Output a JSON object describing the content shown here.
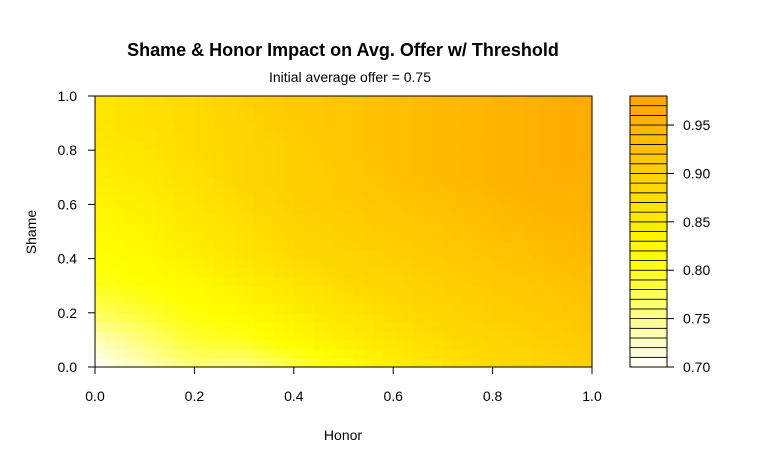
{
  "chart_data": {
    "type": "heatmap",
    "title": "Shame & Honor Impact on Avg. Offer w/ Threshold",
    "subtitle": "Initial average offer = 0.75",
    "xlabel": "Honor",
    "ylabel": "Shame",
    "xlim": [
      0,
      1
    ],
    "ylim": [
      0,
      1
    ],
    "x_ticks": [
      "0.0",
      "0.2",
      "0.4",
      "0.6",
      "0.8",
      "1.0"
    ],
    "y_ticks": [
      "0.0",
      "0.2",
      "0.4",
      "0.6",
      "0.8",
      "1.0"
    ],
    "x": [
      0.0,
      0.1,
      0.2,
      0.3,
      0.4,
      0.5,
      0.6,
      0.7,
      0.8,
      0.9,
      1.0
    ],
    "y": [
      0.0,
      0.1,
      0.2,
      0.3,
      0.4,
      0.5,
      0.6,
      0.7,
      0.8,
      0.9,
      1.0
    ],
    "z": [
      [
        0.7,
        0.73,
        0.76,
        0.75,
        0.78,
        0.81,
        0.84,
        0.86,
        0.88,
        0.89,
        0.9
      ],
      [
        0.73,
        0.76,
        0.79,
        0.8,
        0.82,
        0.84,
        0.86,
        0.88,
        0.89,
        0.9,
        0.91
      ],
      [
        0.77,
        0.79,
        0.81,
        0.82,
        0.84,
        0.86,
        0.88,
        0.89,
        0.9,
        0.91,
        0.92
      ],
      [
        0.8,
        0.81,
        0.82,
        0.84,
        0.86,
        0.88,
        0.89,
        0.9,
        0.91,
        0.92,
        0.93
      ],
      [
        0.81,
        0.82,
        0.84,
        0.86,
        0.88,
        0.89,
        0.9,
        0.91,
        0.92,
        0.93,
        0.94
      ],
      [
        0.82,
        0.83,
        0.85,
        0.87,
        0.89,
        0.9,
        0.91,
        0.92,
        0.93,
        0.94,
        0.95
      ],
      [
        0.83,
        0.84,
        0.86,
        0.88,
        0.9,
        0.91,
        0.92,
        0.93,
        0.94,
        0.95,
        0.96
      ],
      [
        0.84,
        0.85,
        0.87,
        0.89,
        0.9,
        0.91,
        0.93,
        0.94,
        0.95,
        0.96,
        0.96
      ],
      [
        0.85,
        0.86,
        0.88,
        0.89,
        0.9,
        0.92,
        0.93,
        0.94,
        0.95,
        0.96,
        0.97
      ],
      [
        0.86,
        0.87,
        0.88,
        0.89,
        0.91,
        0.92,
        0.93,
        0.94,
        0.95,
        0.96,
        0.97
      ],
      [
        0.86,
        0.87,
        0.88,
        0.9,
        0.91,
        0.92,
        0.93,
        0.94,
        0.95,
        0.96,
        0.97
      ]
    ],
    "colorbar": {
      "min": 0.7,
      "max": 0.98,
      "step": 0.01,
      "ticks": [
        "0.70",
        "0.75",
        "0.80",
        "0.85",
        "0.90",
        "0.95"
      ],
      "colors": {
        "low": "#ffffff",
        "mid": "#ffff00",
        "high": "#ffa500"
      }
    },
    "grid": false,
    "legend": "right"
  }
}
